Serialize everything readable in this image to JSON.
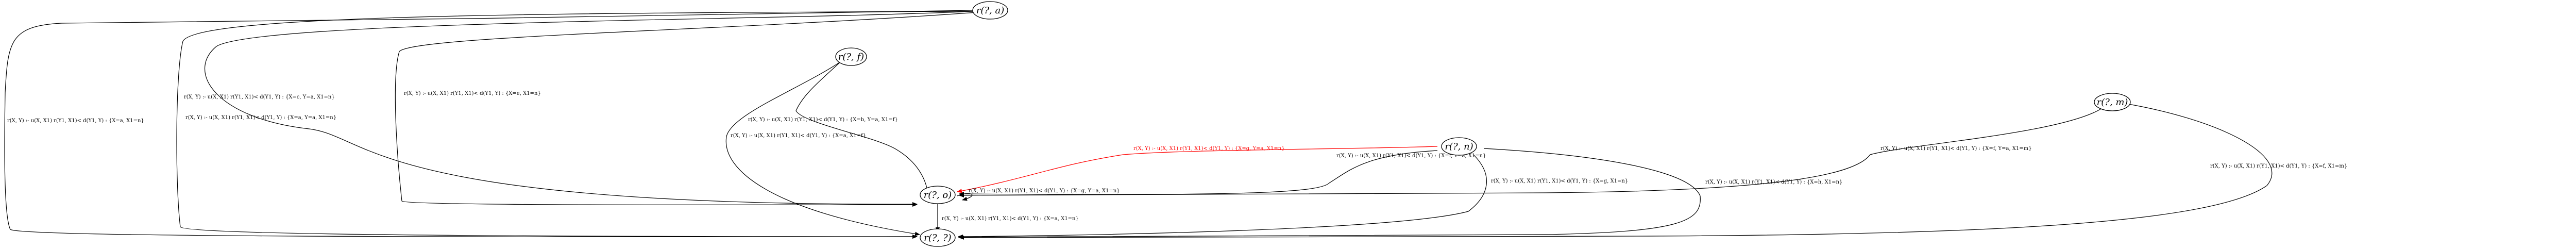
{
  "graph": {
    "nodes": {
      "r_T_a": "r(?, a)",
      "r_T_b": "r(?, f)",
      "r_T_m": "r(?, m)",
      "r_T_n": "r(?, n)",
      "r_T_o": "r(?, o)",
      "r_T_T": "r(?, ?)"
    },
    "edges": {
      "a_to_T_left": "r(X, Y) :- u(X, X1) r(Y1, X1)< d(Y1, Y) : {X=a, X1=n}",
      "a_to_o_1": "r(X, Y) :- u(X, X1) r(Y1, X1)< d(Y1, Y) : {X=c, Y=a, X1=n}",
      "a_to_o_2": "r(X, Y) :- u(X, X1) r(Y1, X1)< d(Y1, Y) : {X=e, X1=n}",
      "a_to_T_mid": "r(X, Y) :- u(X, X1) r(Y1, X1)< d(Y1, Y) : {X=a, Y=a, X1=n}",
      "b_to_o": "r(X, Y) :- u(X, X1) r(Y1, X1)< d(Y1, Y) : {X=b, Y=a, X1=f}",
      "b_to_T": "r(X, Y) :- u(X, X1) r(Y1, X1)< d(Y1, Y) : {X=a, X1=f}",
      "n_to_o_red": "r(X, Y) :- u(X, X1) r(Y1, X1)< d(Y1, Y) : {X=g, Y=a, X1=n}",
      "n_to_o": "r(X, Y) :- u(X, X1) r(Y1, X1)< d(Y1, Y) : {X=f, Y=a, X1=n}",
      "n_to_T_1": "r(X, Y) :- u(X, X1) r(Y1, X1)< d(Y1, Y) : {X=g, X1=n}",
      "n_to_T_2": "r(X, Y) :- u(X, X1) r(Y1, X1)< d(Y1, Y) : {X=h, X1=n}",
      "o_to_T": "r(X, Y) :- u(X, X1) r(Y1, X1)< d(Y1, Y) : {X=a, X1=n}",
      "o_self": "r(X, Y) :- u(X, X1) r(Y1, X1)< d(Y1, Y) : {X=g, Y=a, X1=n}",
      "m_to_o": "r(X, Y) :- u(X, X1) r(Y1, X1)< d(Y1, Y) : {X=f, Y=a, X1=m}",
      "m_to_T": "r(X, Y) :- u(X, X1) r(Y1, X1)< d(Y1, Y) : {X=f, X1=m}"
    },
    "colors": {
      "default": "#000000",
      "highlight": "#ff0000"
    }
  }
}
